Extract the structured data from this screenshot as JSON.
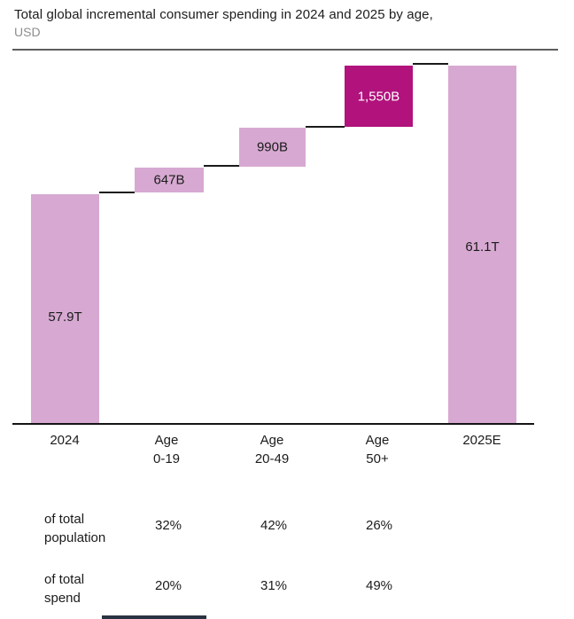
{
  "header": {
    "title": "Total global incremental consumer spending in 2024 and 2025 by age,",
    "subtitle": "USD"
  },
  "chart_data": {
    "type": "bar",
    "subtype": "waterfall",
    "title": "Total global incremental consumer spending in 2024 and 2025 by age",
    "unit": "USD",
    "grid": false,
    "legend": false,
    "categories": [
      "2024",
      "Age 0-19",
      "Age 20-49",
      "Age 50+",
      "2025E"
    ],
    "bars": [
      {
        "cat_line1": "2024",
        "cat_line2": "",
        "value_label": "57.9T",
        "value_usd_trillions": 57.9,
        "role": "total",
        "color": "#D7A9D2"
      },
      {
        "cat_line1": "Age",
        "cat_line2": "0-19",
        "value_label": "647B",
        "value_usd_trillions": 0.647,
        "role": "increment",
        "color": "#D7A9D2"
      },
      {
        "cat_line1": "Age",
        "cat_line2": "20-49",
        "value_label": "990B",
        "value_usd_trillions": 0.99,
        "role": "increment",
        "color": "#D7A9D2"
      },
      {
        "cat_line1": "Age",
        "cat_line2": "50+",
        "value_label": "1,550B",
        "value_usd_trillions": 1.55,
        "role": "increment",
        "color": "#B1127C"
      },
      {
        "cat_line1": "2025E",
        "cat_line2": "",
        "value_label": "61.1T",
        "value_usd_trillions": 61.1,
        "role": "total",
        "color": "#D7A9D2"
      }
    ],
    "colors": {
      "base_bar": "#D7A9D2",
      "highlight_bar": "#B1127C",
      "highlight_label_text": "#ffffff",
      "connector": "#1a1a1a",
      "axis": "#141414",
      "top_rule": "#5e5e5e",
      "subtitle_text": "#8e8e8e"
    }
  },
  "table": {
    "rows": [
      {
        "label_line1": "of total",
        "label_line2": "population",
        "values": [
          "32%",
          "42%",
          "26%"
        ]
      },
      {
        "label_line1": "of total",
        "label_line2": "spend",
        "values": [
          "20%",
          "31%",
          "49%"
        ]
      }
    ]
  }
}
